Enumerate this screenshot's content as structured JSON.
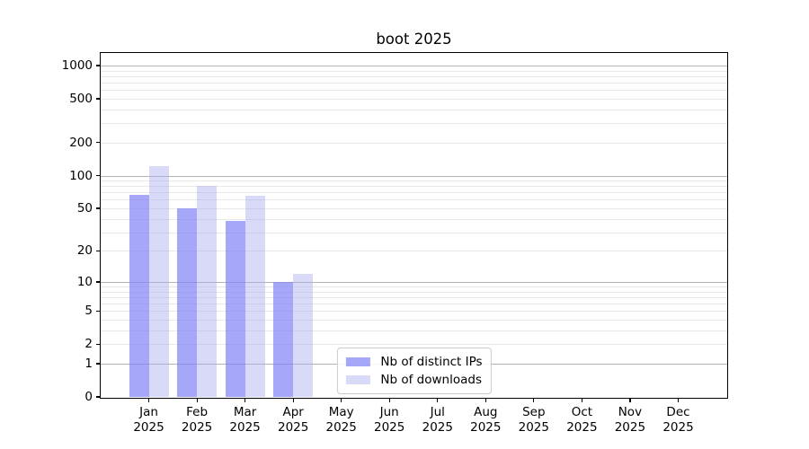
{
  "chart_data": {
    "type": "bar",
    "title": "boot 2025",
    "categories": [
      "Jan",
      "Feb",
      "Mar",
      "Apr",
      "May",
      "Jun",
      "Jul",
      "Aug",
      "Sep",
      "Oct",
      "Nov",
      "Dec"
    ],
    "x_year_label": "2025",
    "series": [
      {
        "name": "Nb of distinct IPs",
        "color": "rgba(130,130,246,0.7)",
        "values": [
          66,
          50,
          38,
          10,
          0,
          0,
          0,
          0,
          0,
          0,
          0,
          0
        ]
      },
      {
        "name": "Nb of downloads",
        "color": "rgba(170,170,240,0.45)",
        "values": [
          122,
          80,
          65,
          12,
          0,
          0,
          0,
          0,
          0,
          0,
          0,
          0
        ]
      }
    ],
    "y_axis": {
      "scale": "log10(1+y)",
      "ticks": [
        0,
        1,
        2,
        5,
        10,
        20,
        50,
        100,
        200,
        500,
        1000
      ],
      "range": [
        0,
        1300
      ],
      "minor_gridlines": true
    },
    "legend_position": "lower-center",
    "colors": {
      "distinct_ips_solid": "#a6a6f4",
      "downloads_solid": "#d7d7f7",
      "grid_major": "#b3b3b3",
      "grid_minor": "#e8e8e8",
      "axis": "#000000"
    }
  }
}
